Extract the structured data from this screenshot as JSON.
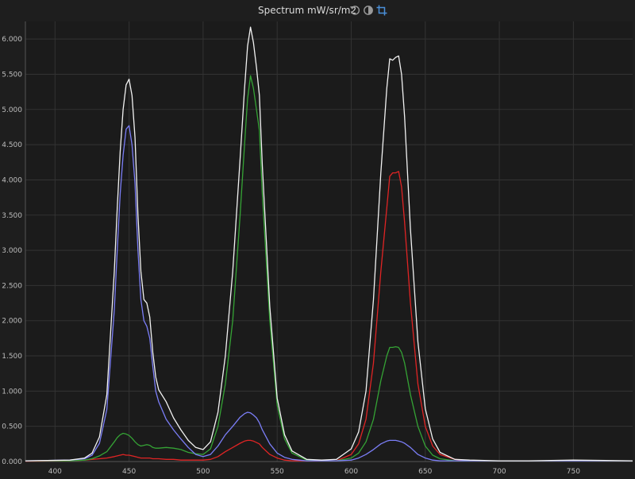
{
  "toolbar": {
    "title": "Spectrum mW/sr/m2",
    "icons": [
      "reset-icon",
      "contrast-icon",
      "crop-icon"
    ],
    "accent_color": "#4a90d9"
  },
  "chart_data": {
    "type": "line",
    "title": "Spectrum mW/sr/m2",
    "xlabel": "",
    "ylabel": "",
    "xlim": [
      380,
      790
    ],
    "ylim": [
      0,
      6.25
    ],
    "grid": true,
    "legend": "none",
    "x_ticks": [
      "400",
      "450",
      "500",
      "550",
      "600",
      "650",
      "700",
      "750"
    ],
    "y_ticks": [
      "0.000",
      "0.500",
      "1.000",
      "1.500",
      "2.000",
      "2.500",
      "3.000",
      "3.500",
      "4.000",
      "4.500",
      "5.000",
      "5.500",
      "6.000"
    ],
    "x": [
      380,
      410,
      420,
      425,
      430,
      435,
      440,
      442,
      444,
      446,
      448,
      450,
      452,
      454,
      456,
      458,
      460,
      462,
      464,
      466,
      468,
      470,
      475,
      480,
      485,
      490,
      495,
      500,
      505,
      510,
      515,
      520,
      525,
      528,
      530,
      532,
      534,
      536,
      538,
      540,
      545,
      550,
      555,
      560,
      570,
      580,
      590,
      600,
      605,
      610,
      615,
      620,
      624,
      626,
      628,
      630,
      632,
      634,
      636,
      640,
      645,
      650,
      655,
      660,
      670,
      680,
      700,
      720,
      750,
      790
    ],
    "series": [
      {
        "color": "#f2f2f2",
        "values": [
          0.01,
          0.02,
          0.05,
          0.12,
          0.35,
          0.95,
          2.7,
          3.6,
          4.4,
          5.0,
          5.35,
          5.43,
          5.2,
          4.6,
          3.5,
          2.7,
          2.3,
          2.25,
          2.05,
          1.55,
          1.2,
          1.02,
          0.85,
          0.62,
          0.45,
          0.3,
          0.2,
          0.17,
          0.28,
          0.7,
          1.5,
          2.7,
          4.3,
          5.3,
          5.9,
          6.17,
          5.95,
          5.6,
          5.2,
          4.2,
          2.2,
          0.9,
          0.38,
          0.15,
          0.03,
          0.02,
          0.03,
          0.18,
          0.42,
          1.0,
          2.3,
          4.1,
          5.3,
          5.72,
          5.7,
          5.74,
          5.76,
          5.5,
          4.9,
          3.3,
          1.7,
          0.75,
          0.32,
          0.13,
          0.03,
          0.02,
          0.01,
          0.01,
          0.02,
          0.01
        ]
      },
      {
        "color": "#7b7ef7",
        "values": [
          0.01,
          0.02,
          0.04,
          0.09,
          0.26,
          0.74,
          2.15,
          3.0,
          3.8,
          4.35,
          4.72,
          4.77,
          4.5,
          3.95,
          3.0,
          2.3,
          2.0,
          1.92,
          1.75,
          1.35,
          1.0,
          0.85,
          0.6,
          0.45,
          0.32,
          0.2,
          0.1,
          0.07,
          0.1,
          0.22,
          0.38,
          0.5,
          0.63,
          0.68,
          0.7,
          0.69,
          0.66,
          0.62,
          0.55,
          0.45,
          0.25,
          0.12,
          0.06,
          0.03,
          0.01,
          0.01,
          0.01,
          0.02,
          0.05,
          0.1,
          0.17,
          0.25,
          0.29,
          0.3,
          0.3,
          0.3,
          0.29,
          0.28,
          0.26,
          0.2,
          0.1,
          0.05,
          0.02,
          0.01,
          0.01,
          0.01,
          0.01,
          0.01,
          0.01,
          0.01
        ]
      },
      {
        "color": "#35a335",
        "values": [
          0.01,
          0.01,
          0.02,
          0.04,
          0.08,
          0.14,
          0.28,
          0.34,
          0.38,
          0.4,
          0.39,
          0.37,
          0.33,
          0.28,
          0.24,
          0.22,
          0.23,
          0.24,
          0.23,
          0.2,
          0.19,
          0.19,
          0.2,
          0.19,
          0.17,
          0.13,
          0.11,
          0.1,
          0.18,
          0.5,
          1.1,
          2.0,
          3.5,
          4.5,
          5.15,
          5.48,
          5.3,
          5.0,
          4.7,
          3.8,
          2.0,
          0.8,
          0.32,
          0.12,
          0.02,
          0.01,
          0.01,
          0.05,
          0.12,
          0.28,
          0.6,
          1.15,
          1.5,
          1.62,
          1.62,
          1.63,
          1.62,
          1.55,
          1.4,
          0.95,
          0.5,
          0.22,
          0.09,
          0.04,
          0.01,
          0.01,
          0.01,
          0.01,
          0.01,
          0.01
        ]
      },
      {
        "color": "#e02424",
        "values": [
          0.005,
          0.01,
          0.02,
          0.03,
          0.04,
          0.05,
          0.07,
          0.08,
          0.09,
          0.1,
          0.09,
          0.09,
          0.08,
          0.07,
          0.06,
          0.05,
          0.05,
          0.05,
          0.05,
          0.04,
          0.04,
          0.04,
          0.03,
          0.03,
          0.02,
          0.02,
          0.02,
          0.02,
          0.03,
          0.07,
          0.14,
          0.2,
          0.26,
          0.29,
          0.3,
          0.3,
          0.29,
          0.27,
          0.25,
          0.2,
          0.1,
          0.05,
          0.02,
          0.01,
          0.01,
          0.01,
          0.01,
          0.1,
          0.25,
          0.6,
          1.4,
          2.7,
          3.6,
          4.05,
          4.1,
          4.1,
          4.12,
          3.9,
          3.4,
          2.25,
          1.1,
          0.5,
          0.22,
          0.1,
          0.03,
          0.01,
          0.01,
          0.01,
          0.01,
          0.01
        ]
      }
    ]
  }
}
